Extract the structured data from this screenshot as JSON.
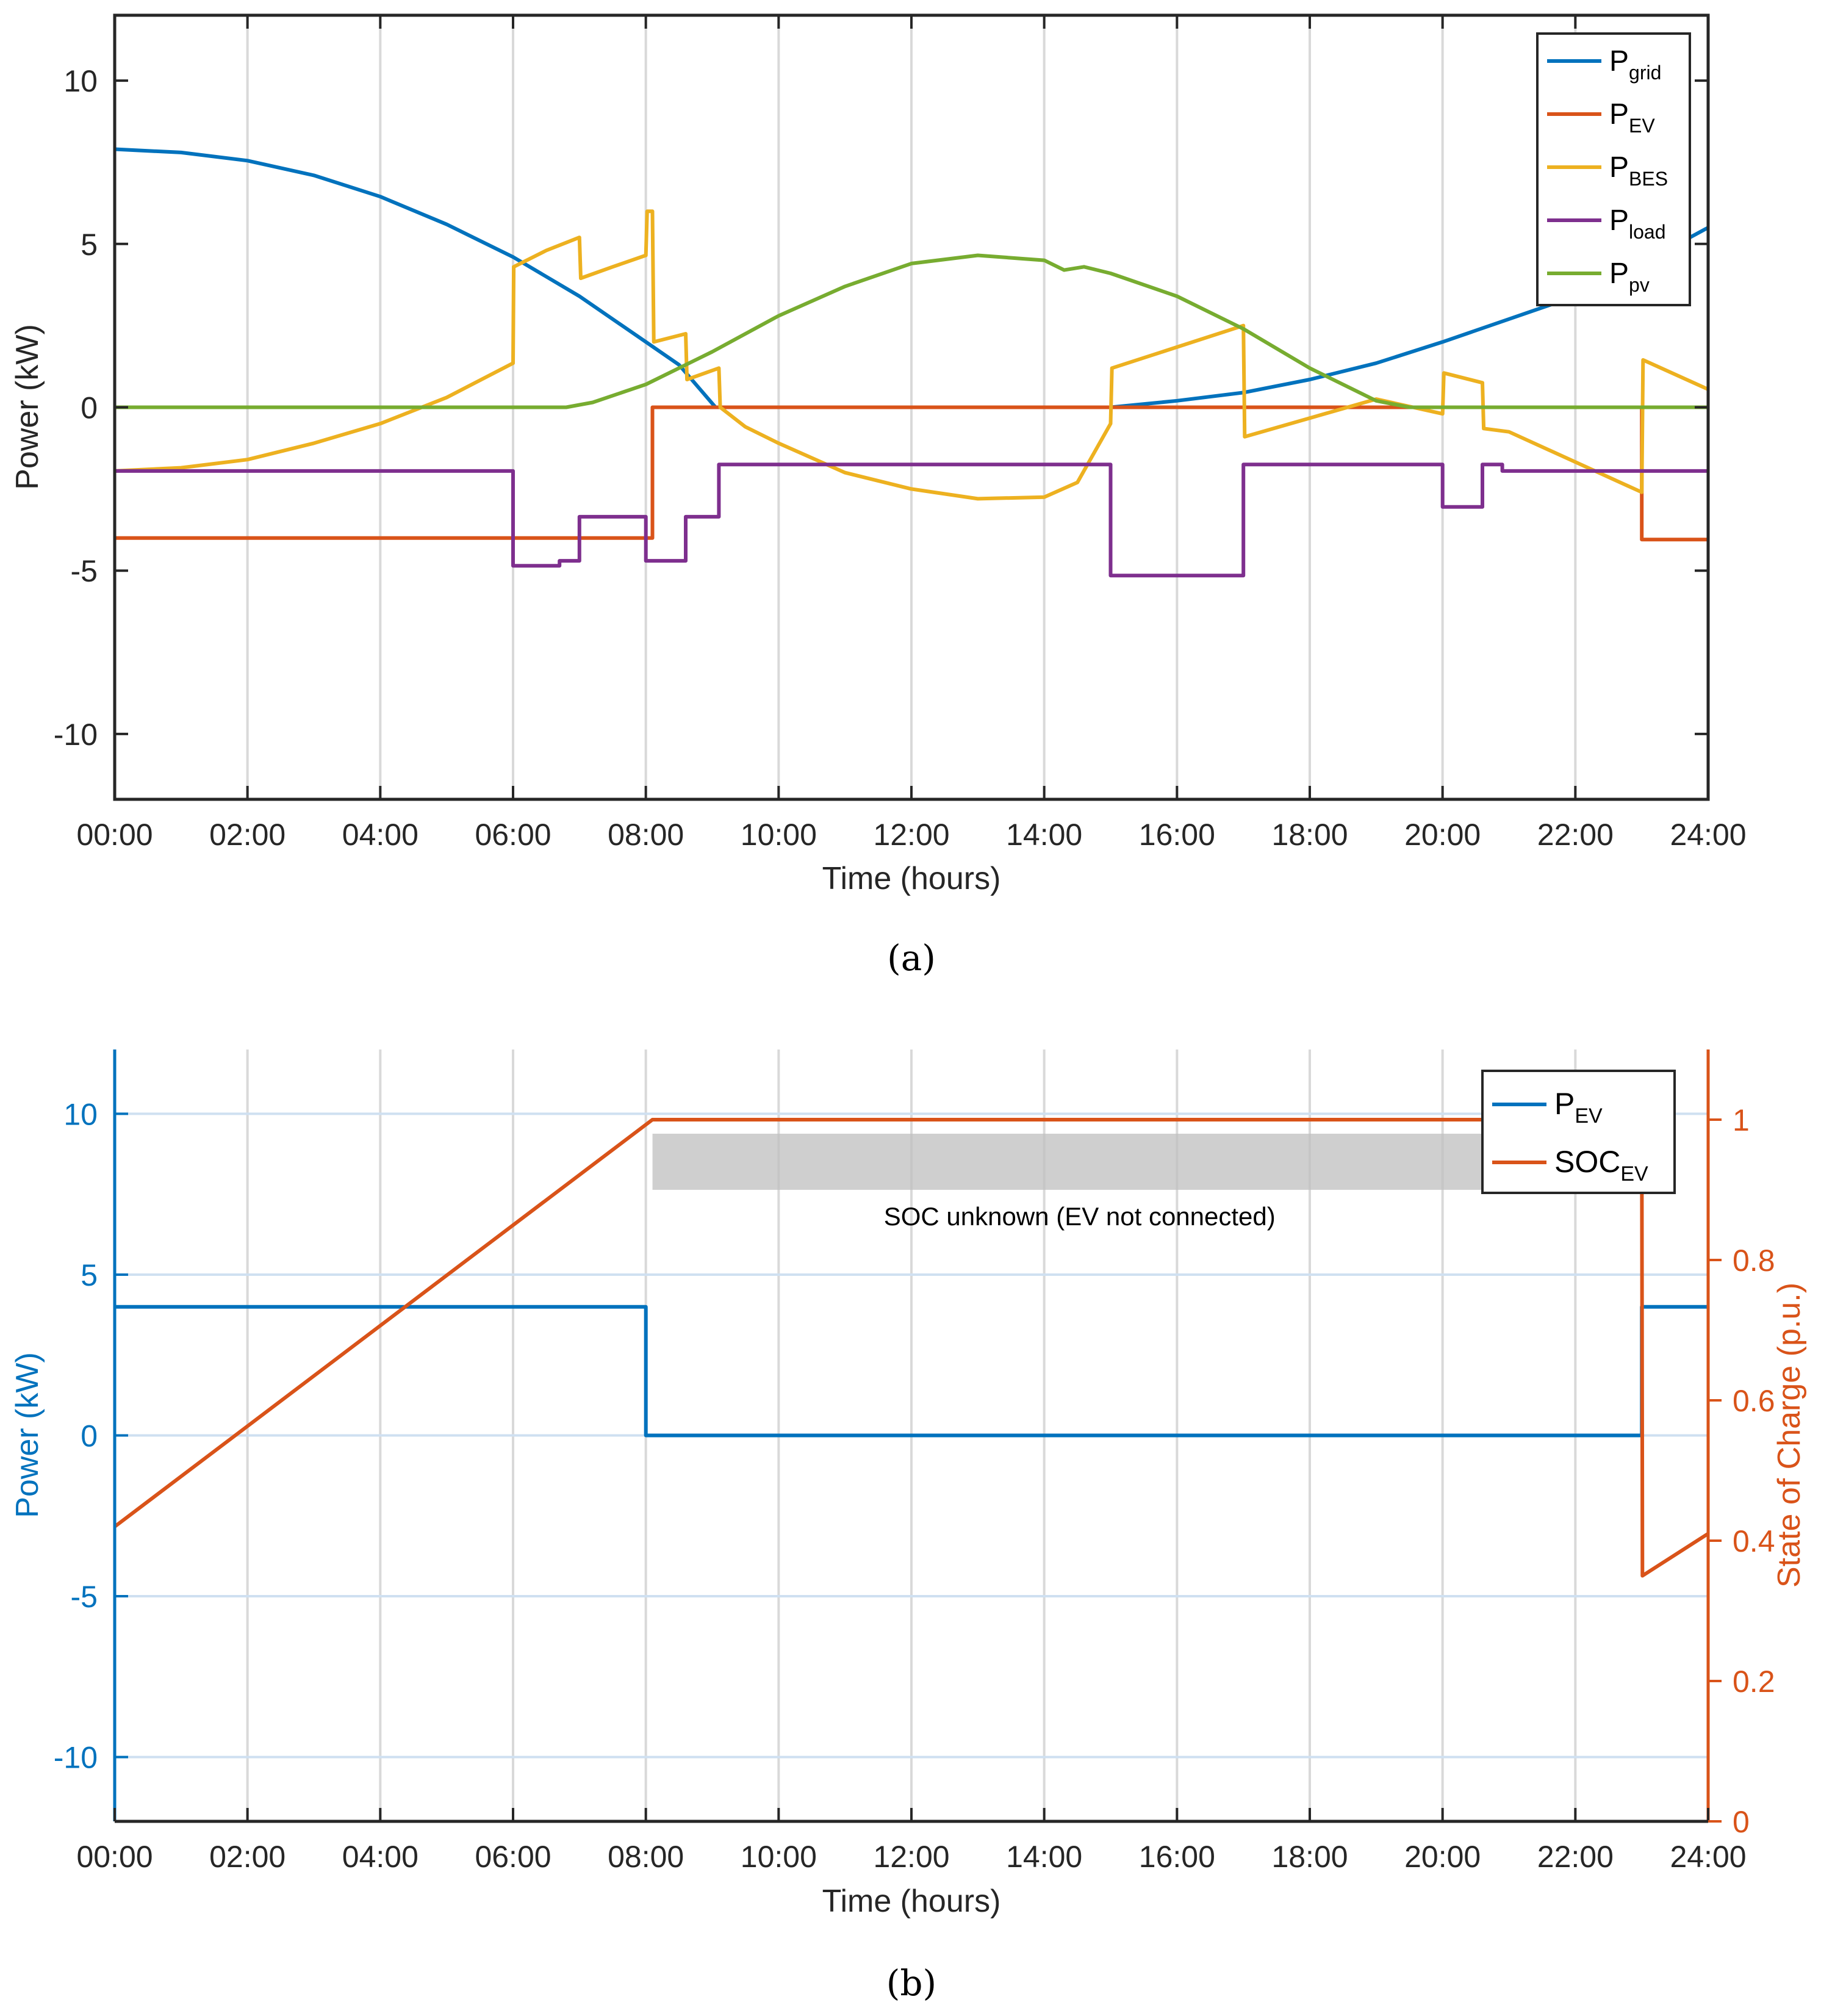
{
  "chart_data": [
    {
      "type": "line",
      "panel_label": "(a)",
      "xlabel": "Time (hours)",
      "ylabel": "Power (kW)",
      "xlim": [
        0,
        24
      ],
      "ylim": [
        -12,
        12
      ],
      "x_ticks": [
        0,
        2,
        4,
        6,
        8,
        10,
        12,
        14,
        16,
        18,
        20,
        22,
        24
      ],
      "x_tick_labels": [
        "00:00",
        "02:00",
        "04:00",
        "06:00",
        "08:00",
        "10:00",
        "12:00",
        "14:00",
        "16:00",
        "18:00",
        "20:00",
        "22:00",
        "24:00"
      ],
      "y_ticks": [
        -10,
        -5,
        0,
        5,
        10
      ],
      "y_tick_labels": [
        "-10",
        "-5",
        "0",
        "5",
        "10"
      ],
      "grid": "x",
      "legend_position": "top-right",
      "series": [
        {
          "name": "P_grid",
          "base": "P",
          "sub": "grid",
          "color": "#0072BD",
          "points": [
            [
              0,
              7.9
            ],
            [
              1,
              7.8
            ],
            [
              2,
              7.55
            ],
            [
              3,
              7.1
            ],
            [
              4,
              6.45
            ],
            [
              5,
              5.6
            ],
            [
              6,
              4.6
            ],
            [
              7,
              3.4
            ],
            [
              8,
              2.0
            ],
            [
              8.5,
              1.3
            ],
            [
              9.05,
              0.0
            ],
            [
              15,
              0.0
            ],
            [
              16,
              0.2
            ],
            [
              17,
              0.45
            ],
            [
              18,
              0.85
            ],
            [
              19,
              1.35
            ],
            [
              20,
              2.0
            ],
            [
              21,
              2.7
            ],
            [
              22,
              3.4
            ],
            [
              23,
              4.4
            ],
            [
              24,
              5.5
            ]
          ]
        },
        {
          "name": "P_EV",
          "base": "P",
          "sub": "EV",
          "color": "#D95319",
          "points": [
            [
              0,
              -4.0
            ],
            [
              8.1,
              -4.0
            ],
            [
              8.1,
              0.0
            ],
            [
              23,
              0.0
            ],
            [
              23,
              -4.05
            ],
            [
              24,
              -4.05
            ]
          ]
        },
        {
          "name": "P_BES",
          "base": "P",
          "sub": "BES",
          "color": "#EDB120",
          "points": [
            [
              0,
              -1.95
            ],
            [
              1,
              -1.85
            ],
            [
              2,
              -1.6
            ],
            [
              3,
              -1.1
            ],
            [
              4,
              -0.5
            ],
            [
              5,
              0.3
            ],
            [
              6,
              1.35
            ],
            [
              6.01,
              4.3
            ],
            [
              6.5,
              4.8
            ],
            [
              7,
              5.2
            ],
            [
              7.02,
              3.95
            ],
            [
              7.5,
              4.3
            ],
            [
              8,
              4.65
            ],
            [
              8.02,
              6.0
            ],
            [
              8.1,
              6.0
            ],
            [
              8.12,
              2.0
            ],
            [
              8.6,
              2.25
            ],
            [
              8.62,
              0.85
            ],
            [
              9.1,
              1.2
            ],
            [
              9.12,
              0.0
            ],
            [
              9.5,
              -0.6
            ],
            [
              10,
              -1.1
            ],
            [
              11,
              -2.0
            ],
            [
              12,
              -2.5
            ],
            [
              13,
              -2.8
            ],
            [
              14,
              -2.75
            ],
            [
              14.5,
              -2.3
            ],
            [
              15,
              -0.5
            ],
            [
              15.02,
              1.2
            ],
            [
              17,
              2.5
            ],
            [
              17.02,
              -0.9
            ],
            [
              19,
              0.25
            ],
            [
              20,
              -0.2
            ],
            [
              20.02,
              1.05
            ],
            [
              20.6,
              0.75
            ],
            [
              20.62,
              -0.65
            ],
            [
              21,
              -0.75
            ],
            [
              23,
              -2.6
            ],
            [
              23.02,
              1.45
            ],
            [
              24,
              0.55
            ]
          ]
        },
        {
          "name": "P_load",
          "base": "P",
          "sub": "load",
          "color": "#7E2F8E",
          "points": [
            [
              0,
              -1.95
            ],
            [
              6,
              -1.95
            ],
            [
              6,
              -4.85
            ],
            [
              6.7,
              -4.85
            ],
            [
              6.7,
              -4.7
            ],
            [
              7,
              -4.7
            ],
            [
              7,
              -3.35
            ],
            [
              8,
              -3.35
            ],
            [
              8,
              -4.7
            ],
            [
              8.6,
              -4.7
            ],
            [
              8.6,
              -3.35
            ],
            [
              9.1,
              -3.35
            ],
            [
              9.1,
              -1.75
            ],
            [
              15,
              -1.75
            ],
            [
              15,
              -5.15
            ],
            [
              17,
              -5.15
            ],
            [
              17,
              -1.75
            ],
            [
              20,
              -1.75
            ],
            [
              20,
              -3.05
            ],
            [
              20.6,
              -3.05
            ],
            [
              20.6,
              -1.75
            ],
            [
              20.9,
              -1.75
            ],
            [
              20.9,
              -1.95
            ],
            [
              24,
              -1.95
            ]
          ]
        },
        {
          "name": "P_pv",
          "base": "P",
          "sub": "pv",
          "color": "#77AC30",
          "points": [
            [
              0,
              0
            ],
            [
              6.8,
              0
            ],
            [
              7.2,
              0.15
            ],
            [
              8,
              0.7
            ],
            [
              9,
              1.7
            ],
            [
              10,
              2.8
            ],
            [
              11,
              3.7
            ],
            [
              12,
              4.4
            ],
            [
              13,
              4.65
            ],
            [
              14,
              4.5
            ],
            [
              14.3,
              4.2
            ],
            [
              14.6,
              4.3
            ],
            [
              15,
              4.1
            ],
            [
              16,
              3.4
            ],
            [
              17,
              2.4
            ],
            [
              18,
              1.2
            ],
            [
              19,
              0.2
            ],
            [
              19.5,
              0
            ],
            [
              24,
              0
            ]
          ]
        }
      ]
    },
    {
      "type": "line",
      "panel_label": "(b)",
      "xlabel": "Time (hours)",
      "ylabel": "Power (kW)",
      "y2label": "State of Charge (p.u.)",
      "xlim": [
        0,
        24
      ],
      "ylim": [
        -12,
        12
      ],
      "y2lim": [
        0,
        1.1
      ],
      "x_ticks": [
        0,
        2,
        4,
        6,
        8,
        10,
        12,
        14,
        16,
        18,
        20,
        22,
        24
      ],
      "x_tick_labels": [
        "00:00",
        "02:00",
        "04:00",
        "06:00",
        "08:00",
        "10:00",
        "12:00",
        "14:00",
        "16:00",
        "18:00",
        "20:00",
        "22:00",
        "24:00"
      ],
      "y_ticks": [
        -10,
        -5,
        0,
        5,
        10
      ],
      "y_tick_labels": [
        "-10",
        "-5",
        "0",
        "5",
        "10"
      ],
      "y2_ticks": [
        0,
        0.2,
        0.4,
        0.6,
        0.8,
        1
      ],
      "y2_tick_labels": [
        "0",
        "0.2",
        "0.4",
        "0.6",
        "0.8",
        "1"
      ],
      "grid": "both",
      "legend_position": "top-right",
      "left_axis_color": "#0072BD",
      "right_axis_color": "#D95319",
      "annotation": {
        "text": "SOC unknown (EV not connected)",
        "x_start": 8.1,
        "x_end": 20.6,
        "y_top": 0.98,
        "y_bottom": 0.9
      },
      "series": [
        {
          "name": "P_EV",
          "base": "P",
          "sub": "EV",
          "color": "#0072BD",
          "axis": "left",
          "points": [
            [
              0,
              4.0
            ],
            [
              8.0,
              4.0
            ],
            [
              8.0,
              0.0
            ],
            [
              23,
              0.0
            ],
            [
              23,
              4.0
            ],
            [
              24,
              4.0
            ]
          ]
        },
        {
          "name": "SOC_EV",
          "base": "SOC",
          "sub": "EV",
          "color": "#D95319",
          "axis": "right",
          "points": [
            [
              0,
              0.42
            ],
            [
              8.1,
              1.0
            ],
            [
              23,
              1.0
            ],
            [
              23.01,
              0.35
            ],
            [
              24,
              0.41
            ]
          ]
        }
      ]
    }
  ]
}
